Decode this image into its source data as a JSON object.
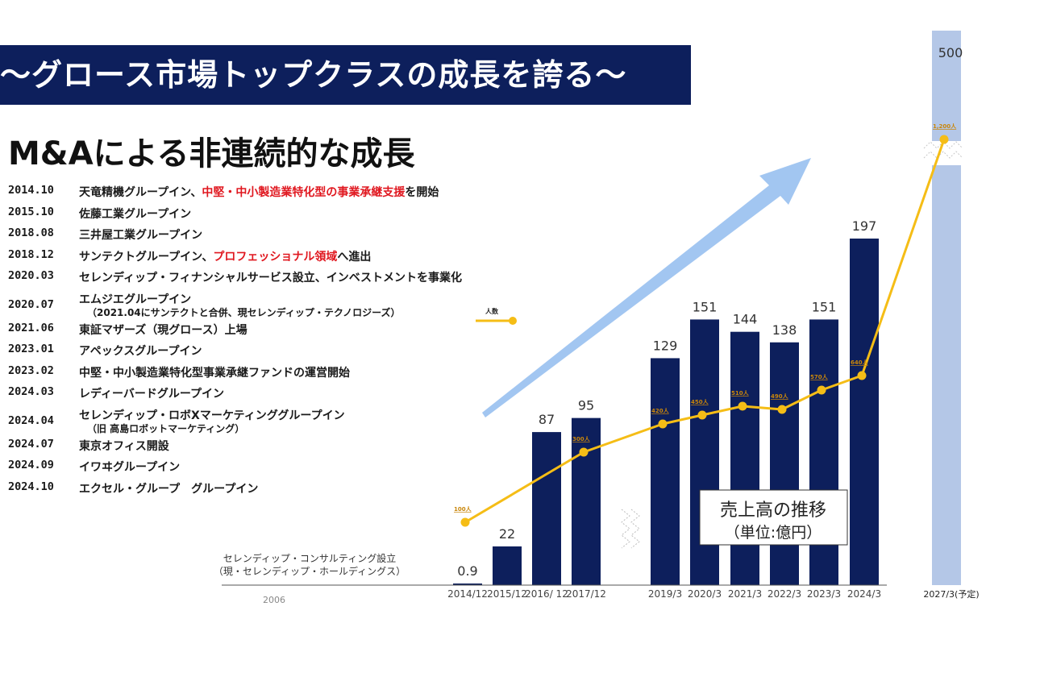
{
  "header": {
    "banner": "〜グロース市場トップクラスの成長を誇る〜",
    "subtitle": "M&Aによる非連続的な成長"
  },
  "timeline": [
    {
      "date": "2014.10",
      "parts": [
        "天竜精機グループイン、",
        "中堅・中小製造業特化型の事業承継支援",
        "を開始"
      ],
      "red": [
        false,
        true,
        false
      ]
    },
    {
      "date": "2015.10",
      "parts": [
        "佐藤工業グループイン"
      ],
      "red": [
        false
      ]
    },
    {
      "date": "2018.08",
      "parts": [
        "三井屋工業グループイン"
      ],
      "red": [
        false
      ]
    },
    {
      "date": "2018.12",
      "parts": [
        "サンテクトグループイン、",
        "プロフェッショナル領域",
        "へ進出"
      ],
      "red": [
        false,
        true,
        false
      ]
    },
    {
      "date": "2020.03",
      "parts": [
        "セレンディップ・フィナンシャルサービス設立、インベストメントを事業化"
      ],
      "red": [
        false
      ]
    },
    {
      "date": "2020.07",
      "parts": [
        "エムジエグループイン"
      ],
      "red": [
        false
      ],
      "sub": "（2021.04にサンテクトと合併、現セレンディップ・テクノロジーズ）"
    },
    {
      "date": "2021.06",
      "parts": [
        "東証マザーズ（現グロース）上場"
      ],
      "red": [
        false
      ]
    },
    {
      "date": "2023.01",
      "parts": [
        "アペックスグループイン"
      ],
      "red": [
        false
      ]
    },
    {
      "date": "2023.02",
      "parts": [
        "中堅・中小製造業特化型事業承継ファンドの運営開始"
      ],
      "red": [
        false
      ]
    },
    {
      "date": "2024.03",
      "parts": [
        "レディーバードグループイン"
      ],
      "red": [
        false
      ]
    },
    {
      "date": "2024.04",
      "parts": [
        "セレンディップ・ロボXマーケティンググループイン"
      ],
      "red": [
        false
      ],
      "sub": "（旧 高島ロボットマーケティング）"
    },
    {
      "date": "2024.07",
      "parts": [
        "東京オフィス開設"
      ],
      "red": [
        false
      ]
    },
    {
      "date": "2024.09",
      "parts": [
        "イワヰグループイン"
      ],
      "red": [
        false
      ]
    },
    {
      "date": "2024.10",
      "parts": [
        "エクセル・グループ　グループイン"
      ],
      "red": [
        false
      ]
    }
  ],
  "founding_note": {
    "line1": "セレンディップ・コンサルティング設立",
    "line2": "（現・セレンディップ・ホールディングス）",
    "year": "2006"
  },
  "chart_box": {
    "title": "売上高の推移",
    "unit": "（単位:億円）"
  },
  "colors": {
    "banner": "#0d1f5c",
    "bar": "#0d1f5c",
    "forecast_bar": "#b4c7e7",
    "line": "#f5bd16",
    "arrow": "#9dc3f0",
    "highlight": "#e0171f"
  },
  "chart_data": {
    "type": "bar",
    "categories": [
      "2014/12",
      "2015/12",
      "2016/ 12",
      "2017/12",
      "2019/3",
      "2020/3",
      "2021/3",
      "2022/3",
      "2023/3",
      "2024/3",
      "2027/3(予定)"
    ],
    "series": [
      {
        "name": "売上高",
        "values": [
          0.9,
          22,
          87,
          95,
          129,
          151,
          144,
          138,
          151,
          197,
          500
        ],
        "value_labels": [
          "0.9",
          "22",
          "87",
          "95",
          "129",
          "151",
          "144",
          "138",
          "151",
          "197",
          "500"
        ]
      },
      {
        "name": "人数",
        "type": "line",
        "values": [
          100,
          null,
          null,
          300,
          420,
          450,
          510,
          490,
          570,
          640,
          1200
        ],
        "labels": [
          "100人",
          null,
          null,
          "300人",
          "420人",
          "450人",
          "510人",
          "490人",
          "570人",
          "640人",
          "1,200人"
        ]
      }
    ],
    "forecast_category": "2027/3(予定)",
    "legend": {
      "label": "人数",
      "placement": "left"
    },
    "axis_breaks": true
  }
}
